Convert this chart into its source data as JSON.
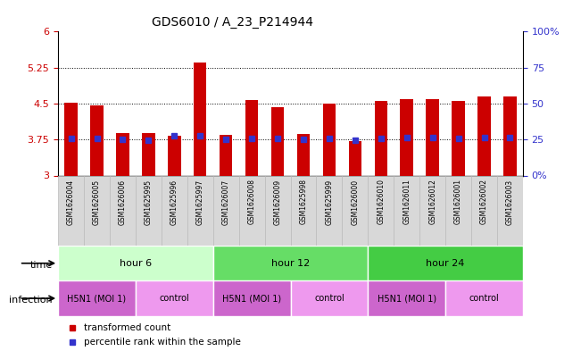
{
  "title": "GDS6010 / A_23_P214944",
  "samples": [
    "GSM1626004",
    "GSM1626005",
    "GSM1626006",
    "GSM1625995",
    "GSM1625996",
    "GSM1625997",
    "GSM1626007",
    "GSM1626008",
    "GSM1626009",
    "GSM1625998",
    "GSM1625999",
    "GSM1626000",
    "GSM1626010",
    "GSM1626011",
    "GSM1626012",
    "GSM1626001",
    "GSM1626002",
    "GSM1626003"
  ],
  "bar_heights": [
    4.52,
    4.47,
    3.88,
    3.88,
    3.83,
    5.35,
    3.85,
    4.57,
    4.42,
    3.86,
    4.5,
    3.72,
    4.55,
    4.6,
    4.6,
    4.55,
    4.65,
    4.65
  ],
  "bar_bottom": 3.0,
  "percentile_values": [
    3.77,
    3.77,
    3.75,
    3.73,
    3.83,
    3.83,
    3.75,
    3.77,
    3.77,
    3.75,
    3.77,
    3.73,
    3.77,
    3.8,
    3.8,
    3.77,
    3.8,
    3.8
  ],
  "bar_color": "#cc0000",
  "percentile_color": "#3333cc",
  "ylim_left": [
    3.0,
    6.0
  ],
  "yticks_left": [
    3.0,
    3.75,
    4.5,
    5.25,
    6.0
  ],
  "ytick_labels_left": [
    "3",
    "3.75",
    "4.5",
    "5.25",
    "6"
  ],
  "ylim_right": [
    0,
    100
  ],
  "yticks_right": [
    0,
    25,
    50,
    75,
    100
  ],
  "ytick_labels_right": [
    "0%",
    "25",
    "50",
    "75",
    "100%"
  ],
  "hlines": [
    3.75,
    4.5,
    5.25
  ],
  "time_groups": [
    {
      "label": "hour 6",
      "start": 0,
      "end": 6,
      "color": "#ccffcc"
    },
    {
      "label": "hour 12",
      "start": 6,
      "end": 12,
      "color": "#66dd66"
    },
    {
      "label": "hour 24",
      "start": 12,
      "end": 18,
      "color": "#44cc44"
    }
  ],
  "infection_groups": [
    {
      "label": "H5N1 (MOI 1)",
      "start": 0,
      "end": 3,
      "color": "#cc66cc"
    },
    {
      "label": "control",
      "start": 3,
      "end": 6,
      "color": "#ee99ee"
    },
    {
      "label": "H5N1 (MOI 1)",
      "start": 6,
      "end": 9,
      "color": "#cc66cc"
    },
    {
      "label": "control",
      "start": 9,
      "end": 12,
      "color": "#ee99ee"
    },
    {
      "label": "H5N1 (MOI 1)",
      "start": 12,
      "end": 15,
      "color": "#cc66cc"
    },
    {
      "label": "control",
      "start": 15,
      "end": 18,
      "color": "#ee99ee"
    }
  ],
  "axis_color_left": "#cc0000",
  "axis_color_right": "#3333cc",
  "sample_box_color": "#d8d8d8",
  "sample_box_edge": "#bbbbbb"
}
